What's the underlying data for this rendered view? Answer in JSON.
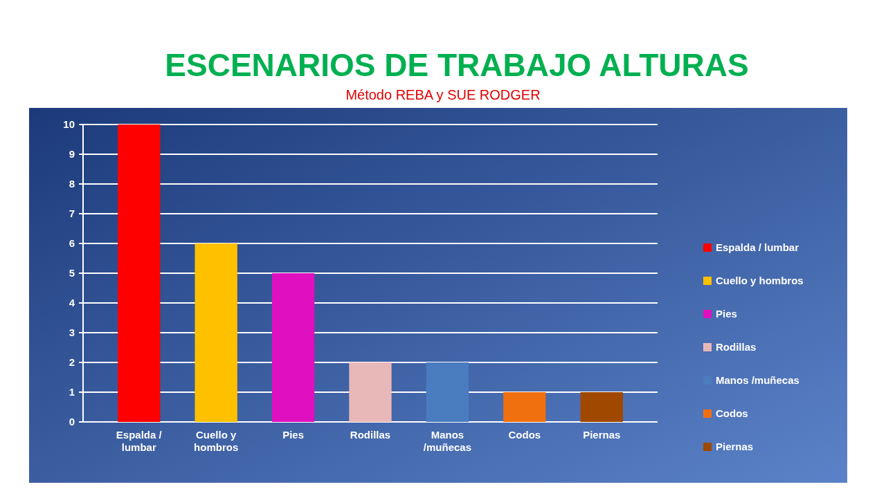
{
  "chart_data": {
    "type": "bar",
    "title": "ESCENARIOS DE TRABAJO ALTURAS",
    "subtitle": "Método REBA y SUE RODGER",
    "categories": [
      "Espalda / lumbar",
      "Cuello y hombros",
      "Pies",
      "Rodillas",
      "Manos /muñecas",
      "Codos",
      "Piernas"
    ],
    "series": [
      {
        "name": "Espalda / lumbar",
        "color": "#ff0000",
        "values": [
          10,
          null,
          null,
          null,
          null,
          null,
          null
        ]
      },
      {
        "name": "Cuello y hombros",
        "color": "#ffc000",
        "values": [
          null,
          6,
          null,
          null,
          null,
          null,
          null
        ]
      },
      {
        "name": "Pies",
        "color": "#e010c0",
        "values": [
          null,
          null,
          5,
          null,
          null,
          null,
          null
        ]
      },
      {
        "name": "Rodillas",
        "color": "#e8b8b8",
        "values": [
          null,
          null,
          null,
          2,
          null,
          null,
          null
        ]
      },
      {
        "name": "Manos /muñecas",
        "color": "#4a7cc0",
        "values": [
          null,
          null,
          null,
          null,
          2,
          null,
          null
        ]
      },
      {
        "name": "Codos",
        "color": "#f07010",
        "values": [
          null,
          null,
          null,
          null,
          null,
          1,
          null
        ]
      },
      {
        "name": "Piernas",
        "color": "#a04800",
        "values": [
          null,
          null,
          null,
          null,
          null,
          null,
          1
        ]
      }
    ],
    "ylim": [
      0,
      10
    ],
    "yticks": [
      0,
      1,
      2,
      3,
      4,
      5,
      6,
      7,
      8,
      9,
      10
    ],
    "grid": "y",
    "legend": "right"
  }
}
